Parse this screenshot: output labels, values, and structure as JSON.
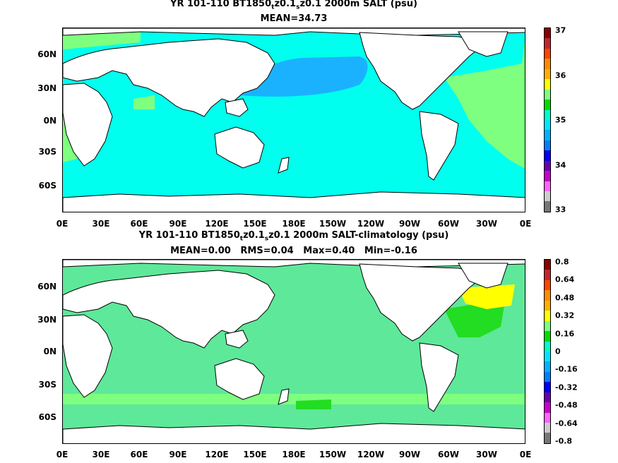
{
  "panel1": {
    "title_a": "YR 101-110 BT1850",
    "sub1": "t",
    "title_b": "z0.1",
    "sub2": "s",
    "title_c": "z0.1 2000m SALT (psu)",
    "stats": "MEAN=34.73",
    "cbar_labels": [
      "37",
      "36",
      "35",
      "34",
      "33"
    ],
    "cbar_colors": [
      "#8b0000",
      "#c1272d",
      "#ff4500",
      "#ff8c00",
      "#ffb000",
      "#ffff00",
      "#7fff7f",
      "#00dd00",
      "#00ffcc",
      "#00e5ff",
      "#00b2ff",
      "#0080ff",
      "#0000ff",
      "#6a00b0",
      "#cc00cc",
      "#ff66ff",
      "#cccccc",
      "#777777"
    ]
  },
  "panel2": {
    "title_a": "YR 101-110 BT1850",
    "sub1": "t",
    "title_b": "z0.1",
    "sub2": "s",
    "title_c": "z0.1 2000m SALT-climatology (psu)",
    "stats": "MEAN=0.00   RMS=0.04   Max=0.40   Min=-0.16",
    "cbar_labels": [
      "0.8",
      "0.64",
      "0.48",
      "0.32",
      "0.16",
      "0",
      "-0.16",
      "-0.32",
      "-0.48",
      "-0.64",
      "-0.8"
    ],
    "cbar_colors": [
      "#8b0000",
      "#c1272d",
      "#ff4500",
      "#ff8c00",
      "#ffb000",
      "#ffff00",
      "#7fff7f",
      "#00dd00",
      "#00ffcc",
      "#00e5ff",
      "#00b2ff",
      "#0080ff",
      "#0000ff",
      "#6a00b0",
      "#cc00cc",
      "#ff66ff",
      "#cccccc",
      "#777777"
    ]
  },
  "lat_labels": [
    "60N",
    "30N",
    "0N",
    "30S",
    "60S"
  ],
  "lon_labels": [
    "0E",
    "30E",
    "60E",
    "90E",
    "120E",
    "150E",
    "180E",
    "150W",
    "120W",
    "90W",
    "60W",
    "30W",
    "0E"
  ],
  "colors": {
    "ocean_34_9": "#00ffee",
    "ocean_34_6": "#1ab2ff",
    "ocean_35_2": "#7fff7f",
    "diff_zero": "#5ee89a",
    "diff_pos": "#22dd22",
    "diff_high": "#ffff00"
  }
}
